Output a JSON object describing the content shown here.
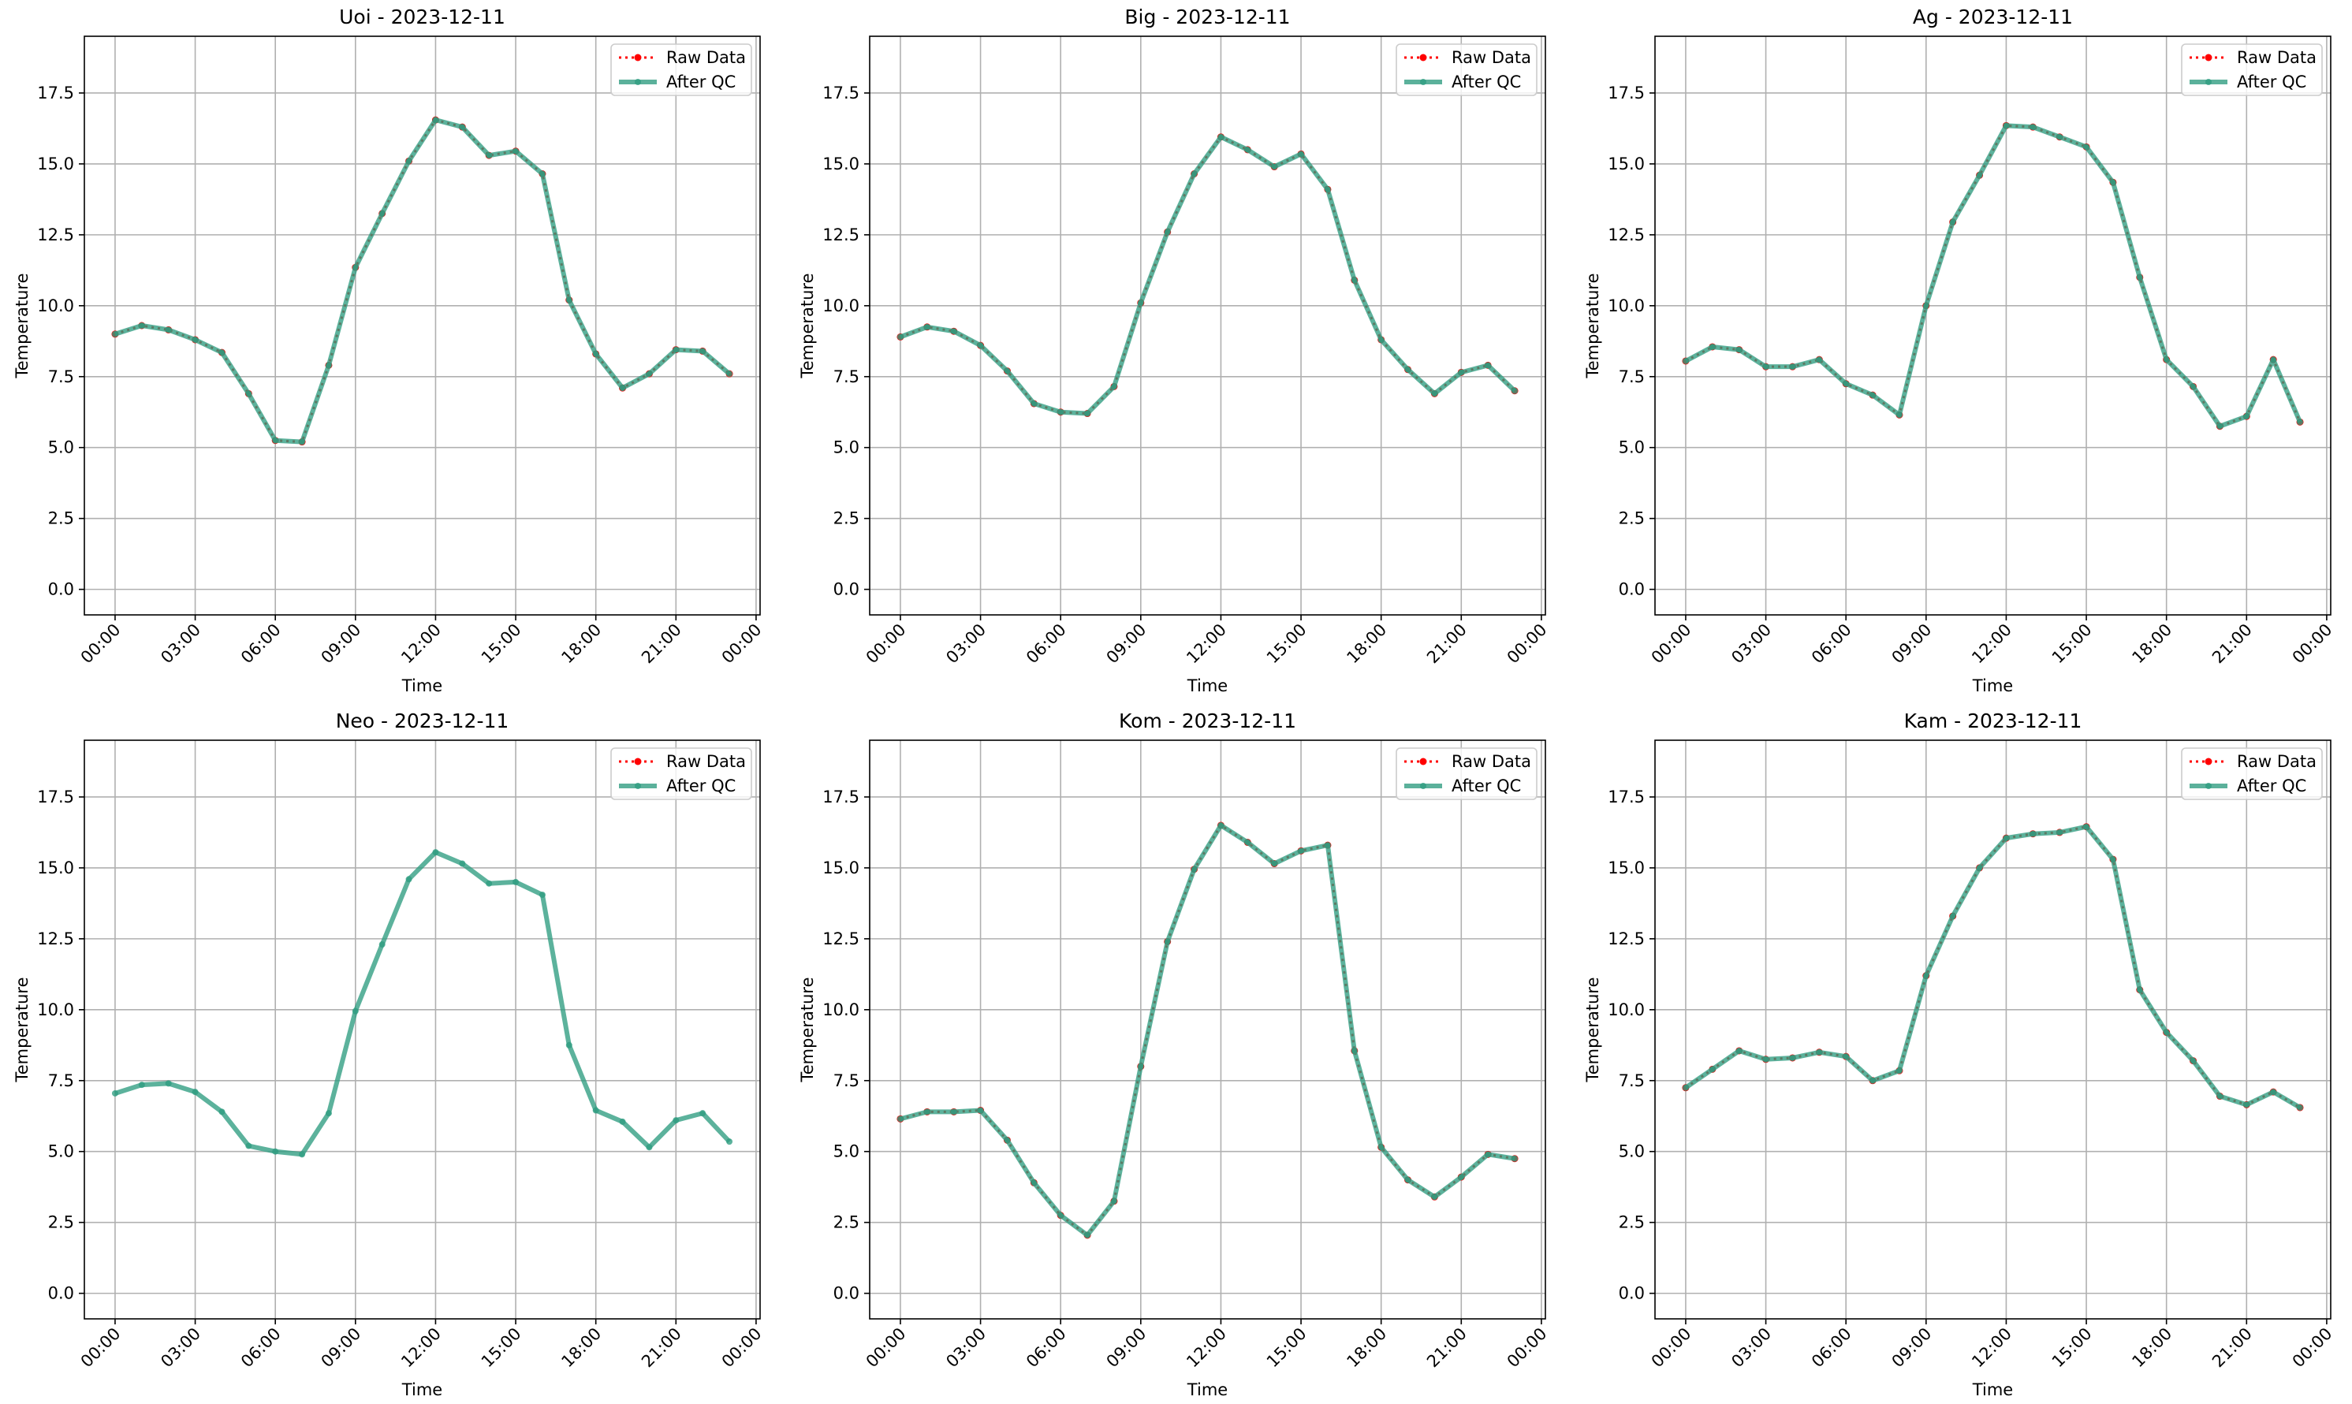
{
  "chart_data": [
    {
      "type": "line",
      "title": "Uoi - 2023-12-11",
      "xlabel": "Time",
      "ylabel": "Temperature",
      "x": [
        0,
        1,
        2,
        3,
        4,
        5,
        6,
        7,
        8,
        9,
        10,
        11,
        12,
        13,
        14,
        15,
        16,
        17,
        18,
        19,
        20,
        21,
        22,
        23
      ],
      "series": [
        {
          "name": "Raw Data",
          "color": "#ff0000",
          "values": [
            9.0,
            9.3,
            9.15,
            8.8,
            8.35,
            6.9,
            5.25,
            5.2,
            7.9,
            11.35,
            13.25,
            15.1,
            16.55,
            16.3,
            15.3,
            15.45,
            14.65,
            10.2,
            8.3,
            7.1,
            7.6,
            8.45,
            8.4,
            7.6
          ]
        },
        {
          "name": "After QC",
          "color": "#2e9c80",
          "values": [
            9.0,
            9.3,
            9.15,
            8.8,
            8.35,
            6.9,
            5.25,
            5.2,
            7.9,
            11.35,
            13.25,
            15.1,
            16.55,
            16.3,
            15.3,
            15.45,
            14.65,
            10.2,
            8.3,
            7.1,
            7.6,
            8.45,
            8.4,
            7.6
          ]
        }
      ],
      "xlim": [
        -1.15,
        24.15
      ],
      "ylim": [
        -0.9,
        19.5
      ],
      "xticks": [
        {
          "value": 0,
          "label": "00:00"
        },
        {
          "value": 3,
          "label": "03:00"
        },
        {
          "value": 6,
          "label": "06:00"
        },
        {
          "value": 9,
          "label": "09:00"
        },
        {
          "value": 12,
          "label": "12:00"
        },
        {
          "value": 15,
          "label": "15:00"
        },
        {
          "value": 18,
          "label": "18:00"
        },
        {
          "value": 21,
          "label": "21:00"
        },
        {
          "value": 24,
          "label": "00:00"
        }
      ],
      "yticks": [
        {
          "value": 0,
          "label": "0.0"
        },
        2.5,
        {
          "value": 5,
          "label": "5.0"
        },
        7.5,
        {
          "value": 10,
          "label": "10.0"
        },
        12.5,
        {
          "value": 15,
          "label": "15.0"
        },
        17.5
      ],
      "grid": true,
      "legend": "upper right"
    },
    {
      "type": "line",
      "title": "Big - 2023-12-11",
      "xlabel": "Time",
      "ylabel": "Temperature",
      "x": [
        0,
        1,
        2,
        3,
        4,
        5,
        6,
        7,
        8,
        9,
        10,
        11,
        12,
        13,
        14,
        15,
        16,
        17,
        18,
        19,
        20,
        21,
        22,
        23
      ],
      "series": [
        {
          "name": "Raw Data",
          "color": "#ff0000",
          "values": [
            8.9,
            9.25,
            9.1,
            8.6,
            7.7,
            6.55,
            6.25,
            6.2,
            7.15,
            10.1,
            12.6,
            14.65,
            15.95,
            15.5,
            14.9,
            15.35,
            14.1,
            10.9,
            8.8,
            7.75,
            6.9,
            7.65,
            7.9,
            7.0
          ]
        },
        {
          "name": "After QC",
          "color": "#2e9c80",
          "values": [
            8.9,
            9.25,
            9.1,
            8.6,
            7.7,
            6.55,
            6.25,
            6.2,
            7.15,
            10.1,
            12.6,
            14.65,
            15.95,
            15.5,
            14.9,
            15.35,
            14.1,
            10.9,
            8.8,
            7.75,
            6.9,
            7.65,
            7.9,
            7.0
          ]
        }
      ],
      "xlim": [
        -1.15,
        24.15
      ],
      "ylim": [
        -0.9,
        19.5
      ],
      "xticks": [
        {
          "value": 0,
          "label": "00:00"
        },
        {
          "value": 3,
          "label": "03:00"
        },
        {
          "value": 6,
          "label": "06:00"
        },
        {
          "value": 9,
          "label": "09:00"
        },
        {
          "value": 12,
          "label": "12:00"
        },
        {
          "value": 15,
          "label": "15:00"
        },
        {
          "value": 18,
          "label": "18:00"
        },
        {
          "value": 21,
          "label": "21:00"
        },
        {
          "value": 24,
          "label": "00:00"
        }
      ],
      "yticks": [
        {
          "value": 0,
          "label": "0.0"
        },
        2.5,
        {
          "value": 5,
          "label": "5.0"
        },
        7.5,
        {
          "value": 10,
          "label": "10.0"
        },
        12.5,
        {
          "value": 15,
          "label": "15.0"
        },
        17.5
      ],
      "grid": true,
      "legend": "upper right"
    },
    {
      "type": "line",
      "title": "Ag - 2023-12-11",
      "xlabel": "Time",
      "ylabel": "Temperature",
      "x": [
        0,
        1,
        2,
        3,
        4,
        5,
        6,
        7,
        8,
        9,
        10,
        11,
        12,
        13,
        14,
        15,
        16,
        17,
        18,
        19,
        20,
        21,
        22,
        23
      ],
      "series": [
        {
          "name": "Raw Data",
          "color": "#ff0000",
          "values": [
            8.05,
            8.55,
            8.45,
            7.85,
            7.85,
            8.1,
            7.25,
            6.85,
            6.15,
            10.0,
            12.95,
            14.6,
            16.35,
            16.3,
            15.95,
            15.6,
            14.35,
            11.0,
            8.1,
            7.15,
            5.75,
            6.1,
            8.1,
            5.9
          ]
        },
        {
          "name": "After QC",
          "color": "#2e9c80",
          "values": [
            8.05,
            8.55,
            8.45,
            7.85,
            7.85,
            8.1,
            7.25,
            6.85,
            6.15,
            10.0,
            12.95,
            14.6,
            16.35,
            16.3,
            15.95,
            15.6,
            14.35,
            11.0,
            8.1,
            7.15,
            5.75,
            6.1,
            8.1,
            5.9
          ]
        }
      ],
      "xlim": [
        -1.15,
        24.15
      ],
      "ylim": [
        -0.9,
        19.5
      ],
      "xticks": [
        {
          "value": 0,
          "label": "00:00"
        },
        {
          "value": 3,
          "label": "03:00"
        },
        {
          "value": 6,
          "label": "06:00"
        },
        {
          "value": 9,
          "label": "09:00"
        },
        {
          "value": 12,
          "label": "12:00"
        },
        {
          "value": 15,
          "label": "15:00"
        },
        {
          "value": 18,
          "label": "18:00"
        },
        {
          "value": 21,
          "label": "21:00"
        },
        {
          "value": 24,
          "label": "00:00"
        }
      ],
      "yticks": [
        {
          "value": 0,
          "label": "0.0"
        },
        2.5,
        {
          "value": 5,
          "label": "5.0"
        },
        7.5,
        {
          "value": 10,
          "label": "10.0"
        },
        12.5,
        {
          "value": 15,
          "label": "15.0"
        },
        17.5
      ],
      "grid": true,
      "legend": "upper right"
    },
    {
      "type": "line",
      "title": "Neo - 2023-12-11",
      "xlabel": "Time",
      "ylabel": "Temperature",
      "x": [
        0,
        1,
        2,
        3,
        4,
        5,
        6,
        7,
        8,
        9,
        10,
        11,
        12,
        13,
        14,
        15,
        16,
        17,
        18,
        19,
        20,
        21,
        22,
        23
      ],
      "series": [
        {
          "name": "Raw Data",
          "color": "#ff0000",
          "values": [
            null,
            null,
            null,
            null,
            null,
            null,
            null,
            null,
            null,
            null,
            null,
            null,
            null,
            null,
            null,
            null,
            null,
            null,
            null,
            null,
            null,
            null,
            null,
            null
          ]
        },
        {
          "name": "After QC",
          "color": "#2e9c80",
          "values": [
            7.05,
            7.35,
            7.4,
            7.1,
            6.4,
            5.2,
            5.0,
            4.9,
            6.35,
            9.95,
            12.3,
            14.6,
            15.55,
            15.15,
            14.45,
            14.5,
            14.05,
            8.75,
            6.45,
            6.05,
            5.15,
            6.1,
            6.35,
            5.35
          ]
        }
      ],
      "xlim": [
        -1.15,
        24.15
      ],
      "ylim": [
        -0.9,
        19.5
      ],
      "xticks": [
        {
          "value": 0,
          "label": "00:00"
        },
        {
          "value": 3,
          "label": "03:00"
        },
        {
          "value": 6,
          "label": "06:00"
        },
        {
          "value": 9,
          "label": "09:00"
        },
        {
          "value": 12,
          "label": "12:00"
        },
        {
          "value": 15,
          "label": "15:00"
        },
        {
          "value": 18,
          "label": "18:00"
        },
        {
          "value": 21,
          "label": "21:00"
        },
        {
          "value": 24,
          "label": "00:00"
        }
      ],
      "yticks": [
        {
          "value": 0,
          "label": "0.0"
        },
        2.5,
        {
          "value": 5,
          "label": "5.0"
        },
        7.5,
        {
          "value": 10,
          "label": "10.0"
        },
        12.5,
        {
          "value": 15,
          "label": "15.0"
        },
        17.5
      ],
      "grid": true,
      "legend": "upper right"
    },
    {
      "type": "line",
      "title": "Kom - 2023-12-11",
      "xlabel": "Time",
      "ylabel": "Temperature",
      "x": [
        0,
        1,
        2,
        3,
        4,
        5,
        6,
        7,
        8,
        9,
        10,
        11,
        12,
        13,
        14,
        15,
        16,
        17,
        18,
        19,
        20,
        21,
        22,
        23
      ],
      "series": [
        {
          "name": "Raw Data",
          "color": "#ff0000",
          "values": [
            6.15,
            6.4,
            6.4,
            6.45,
            5.4,
            3.9,
            2.75,
            2.05,
            3.25,
            8.0,
            12.4,
            14.95,
            16.5,
            15.9,
            15.15,
            15.6,
            15.8,
            8.55,
            5.15,
            4.0,
            3.4,
            4.1,
            4.9,
            4.75
          ]
        },
        {
          "name": "After QC",
          "color": "#2e9c80",
          "values": [
            6.15,
            6.4,
            6.4,
            6.45,
            5.4,
            3.9,
            2.75,
            2.05,
            3.25,
            8.0,
            12.4,
            14.95,
            16.5,
            15.9,
            15.15,
            15.6,
            15.8,
            8.55,
            5.15,
            4.0,
            3.4,
            4.1,
            4.9,
            4.75
          ]
        }
      ],
      "xlim": [
        -1.15,
        24.15
      ],
      "ylim": [
        -0.9,
        19.5
      ],
      "xticks": [
        {
          "value": 0,
          "label": "00:00"
        },
        {
          "value": 3,
          "label": "03:00"
        },
        {
          "value": 6,
          "label": "06:00"
        },
        {
          "value": 9,
          "label": "09:00"
        },
        {
          "value": 12,
          "label": "12:00"
        },
        {
          "value": 15,
          "label": "15:00"
        },
        {
          "value": 18,
          "label": "18:00"
        },
        {
          "value": 21,
          "label": "21:00"
        },
        {
          "value": 24,
          "label": "00:00"
        }
      ],
      "yticks": [
        {
          "value": 0,
          "label": "0.0"
        },
        2.5,
        {
          "value": 5,
          "label": "5.0"
        },
        7.5,
        {
          "value": 10,
          "label": "10.0"
        },
        12.5,
        {
          "value": 15,
          "label": "15.0"
        },
        17.5
      ],
      "grid": true,
      "legend": "upper right"
    },
    {
      "type": "line",
      "title": "Kam - 2023-12-11",
      "xlabel": "Time",
      "ylabel": "Temperature",
      "x": [
        0,
        1,
        2,
        3,
        4,
        5,
        6,
        7,
        8,
        9,
        10,
        11,
        12,
        13,
        14,
        15,
        16,
        17,
        18,
        19,
        20,
        21,
        22,
        23
      ],
      "series": [
        {
          "name": "Raw Data",
          "color": "#ff0000",
          "values": [
            7.25,
            7.9,
            8.55,
            8.25,
            8.3,
            8.5,
            8.35,
            7.5,
            7.85,
            11.2,
            13.3,
            15.0,
            16.05,
            16.2,
            16.25,
            16.45,
            15.3,
            10.7,
            9.2,
            8.2,
            6.95,
            6.65,
            7.1,
            6.55
          ]
        },
        {
          "name": "After QC",
          "color": "#2e9c80",
          "values": [
            7.25,
            7.9,
            8.55,
            8.25,
            8.3,
            8.5,
            8.35,
            7.5,
            7.85,
            11.2,
            13.3,
            15.0,
            16.05,
            16.2,
            16.25,
            16.45,
            15.3,
            10.7,
            9.2,
            8.2,
            6.95,
            6.65,
            7.1,
            6.55
          ]
        }
      ],
      "xlim": [
        -1.15,
        24.15
      ],
      "ylim": [
        -0.9,
        19.5
      ],
      "xticks": [
        {
          "value": 0,
          "label": "00:00"
        },
        {
          "value": 3,
          "label": "03:00"
        },
        {
          "value": 6,
          "label": "06:00"
        },
        {
          "value": 9,
          "label": "09:00"
        },
        {
          "value": 12,
          "label": "12:00"
        },
        {
          "value": 15,
          "label": "15:00"
        },
        {
          "value": 18,
          "label": "18:00"
        },
        {
          "value": 21,
          "label": "21:00"
        },
        {
          "value": 24,
          "label": "00:00"
        }
      ],
      "yticks": [
        {
          "value": 0,
          "label": "0.0"
        },
        2.5,
        {
          "value": 5,
          "label": "5.0"
        },
        7.5,
        {
          "value": 10,
          "label": "10.0"
        },
        12.5,
        {
          "value": 15,
          "label": "15.0"
        },
        17.5
      ],
      "grid": true,
      "legend": "upper right"
    }
  ]
}
